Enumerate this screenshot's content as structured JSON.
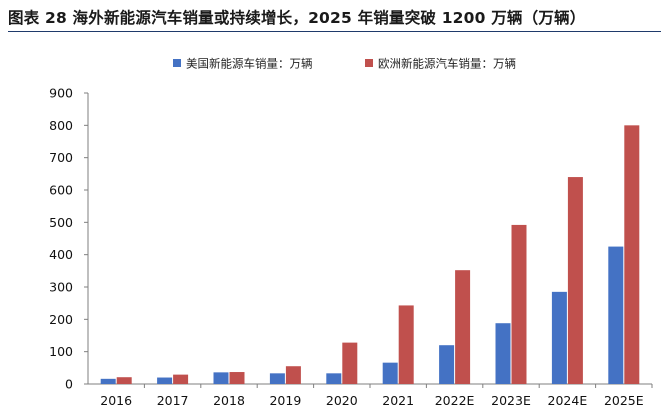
{
  "header": {
    "title": "图表 28 海外新能源汽车销量或持续增长，2025 年销量突破 1200 万辆（万辆）"
  },
  "colors": {
    "us": "#4472c4",
    "eu": "#c0504d",
    "title_rule": "#1f3a6b"
  },
  "chart_data": {
    "type": "bar",
    "title": "",
    "xlabel": "",
    "ylabel": "",
    "ylim": [
      0,
      900
    ],
    "yticks": [
      0,
      100,
      200,
      300,
      400,
      500,
      600,
      700,
      800,
      900
    ],
    "grid": false,
    "legend_position": "top-center",
    "categories": [
      "2016",
      "2017",
      "2018",
      "2019",
      "2020",
      "2021",
      "2022E",
      "2023E",
      "2024E",
      "2025E"
    ],
    "series": [
      {
        "name": "美国新能源车销量：万辆",
        "color": "#4472c4",
        "values": [
          16,
          20,
          36,
          33,
          33,
          66,
          120,
          188,
          285,
          425
        ]
      },
      {
        "name": "欧洲新能源汽车销量：万辆",
        "color": "#c0504d",
        "values": [
          21,
          29,
          37,
          55,
          128,
          243,
          352,
          492,
          640,
          800
        ]
      }
    ]
  }
}
